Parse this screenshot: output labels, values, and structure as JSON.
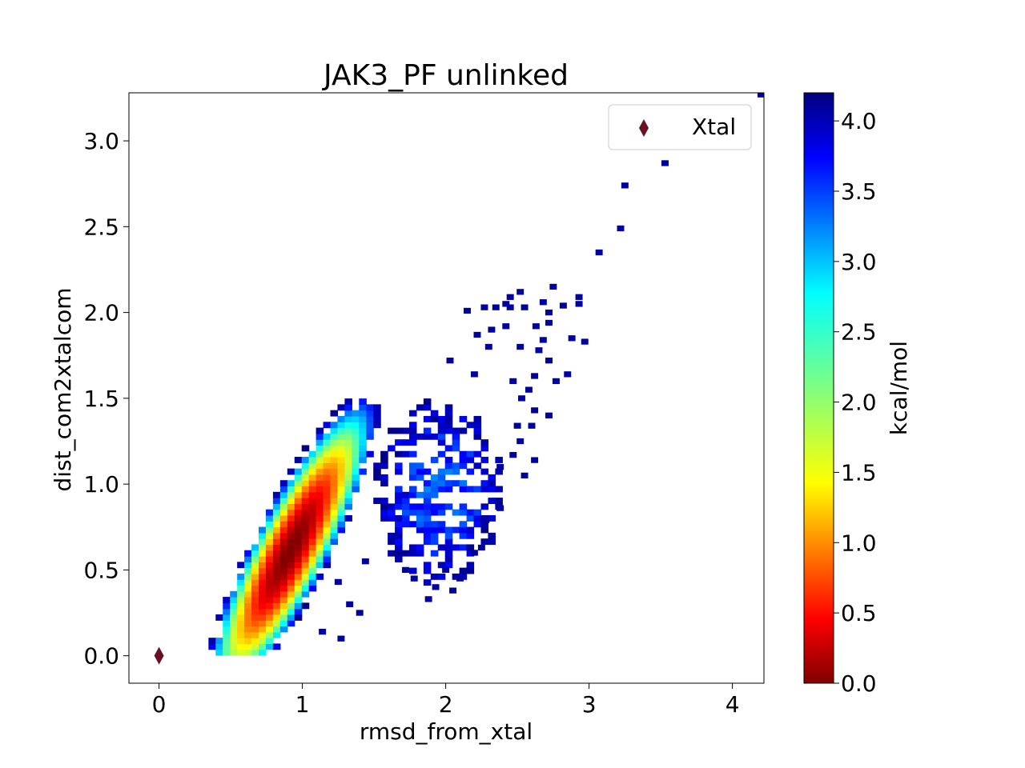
{
  "chart_data": {
    "type": "heatmap",
    "title": "JAK3_PF unlinked",
    "xlabel": "rmsd_from_xtal",
    "ylabel": "dist_com2xtalcom",
    "xlim": [
      -0.21,
      4.22
    ],
    "ylim": [
      -0.16,
      3.28
    ],
    "xticks": [
      0,
      1,
      2,
      3,
      4
    ],
    "xtick_labels": [
      "0",
      "1",
      "2",
      "3",
      "4"
    ],
    "yticks": [
      0.0,
      0.5,
      1.0,
      1.5,
      2.0,
      2.5,
      3.0
    ],
    "ytick_labels": [
      "0.0",
      "0.5",
      "1.0",
      "1.5",
      "2.0",
      "2.5",
      "3.0"
    ],
    "grid": false,
    "colormap": "jet_r",
    "colorbar": {
      "label": "kcal/mol",
      "range": [
        0.0,
        4.2
      ],
      "ticks": [
        0.0,
        0.5,
        1.0,
        1.5,
        2.0,
        2.5,
        3.0,
        3.5,
        4.0
      ],
      "tick_labels": [
        "0.0",
        "0.5",
        "1.0",
        "1.5",
        "2.0",
        "2.5",
        "3.0",
        "3.5",
        "4.0"
      ]
    },
    "bin_width": {
      "x": 0.05,
      "y": 0.034
    },
    "density": {
      "description_free": true,
      "main_peak": {
        "x": 0.92,
        "y": 0.62,
        "min_energy": 0.0
      },
      "major_axis_slope": 1.6,
      "max_energy": 4.2
    },
    "outlier_bins": [
      [
        4.2,
        3.27
      ],
      [
        3.53,
        2.87
      ],
      [
        3.25,
        2.74
      ],
      [
        3.22,
        2.49
      ],
      [
        3.07,
        2.35
      ],
      [
        2.75,
        2.15
      ],
      [
        2.93,
        2.09
      ],
      [
        2.93,
        2.05
      ],
      [
        2.82,
        2.04
      ],
      [
        2.52,
        2.12
      ],
      [
        2.45,
        2.09
      ],
      [
        2.45,
        2.03
      ],
      [
        2.42,
        2.05
      ],
      [
        2.35,
        2.03
      ],
      [
        2.27,
        2.03
      ],
      [
        2.15,
        2.01
      ],
      [
        2.55,
        2.03
      ],
      [
        2.68,
        2.06
      ],
      [
        2.72,
        2.0
      ],
      [
        2.72,
        1.94
      ],
      [
        2.42,
        1.92
      ],
      [
        2.63,
        1.92
      ],
      [
        2.32,
        1.9
      ],
      [
        2.22,
        1.87
      ],
      [
        2.88,
        1.85
      ],
      [
        2.97,
        1.83
      ],
      [
        2.3,
        1.8
      ],
      [
        2.52,
        1.8
      ],
      [
        2.68,
        1.84
      ],
      [
        2.65,
        1.78
      ],
      [
        2.72,
        1.72
      ],
      [
        2.85,
        1.64
      ],
      [
        2.62,
        1.63
      ],
      [
        2.2,
        1.64
      ],
      [
        2.03,
        1.72
      ],
      [
        2.47,
        1.6
      ],
      [
        2.58,
        1.55
      ],
      [
        2.77,
        1.6
      ],
      [
        2.53,
        1.5
      ],
      [
        2.62,
        1.43
      ],
      [
        2.72,
        1.4
      ],
      [
        2.5,
        1.34
      ],
      [
        2.6,
        1.34
      ],
      [
        2.52,
        1.25
      ],
      [
        2.47,
        1.17
      ],
      [
        2.62,
        1.14
      ],
      [
        2.38,
        1.1
      ],
      [
        2.55,
        1.05
      ],
      [
        2.38,
        0.86
      ],
      [
        2.28,
        0.79
      ],
      [
        2.25,
        0.63
      ],
      [
        2.2,
        0.6
      ],
      [
        2.0,
        0.5
      ],
      [
        2.1,
        0.45
      ],
      [
        2.05,
        0.38
      ],
      [
        1.88,
        0.33
      ],
      [
        1.93,
        0.4
      ],
      [
        1.78,
        0.45
      ],
      [
        1.72,
        0.5
      ],
      [
        1.4,
        0.25
      ],
      [
        1.27,
        0.1
      ],
      [
        1.14,
        0.14
      ],
      [
        1.33,
        0.3
      ],
      [
        1.25,
        0.43
      ],
      [
        1.44,
        0.55
      ]
    ],
    "series": [
      {
        "name": "Xtal",
        "marker": "diamond",
        "color": "#6b0f24",
        "x": [
          0.0
        ],
        "y": [
          0.0
        ]
      }
    ],
    "legend_placement": "top-right"
  }
}
